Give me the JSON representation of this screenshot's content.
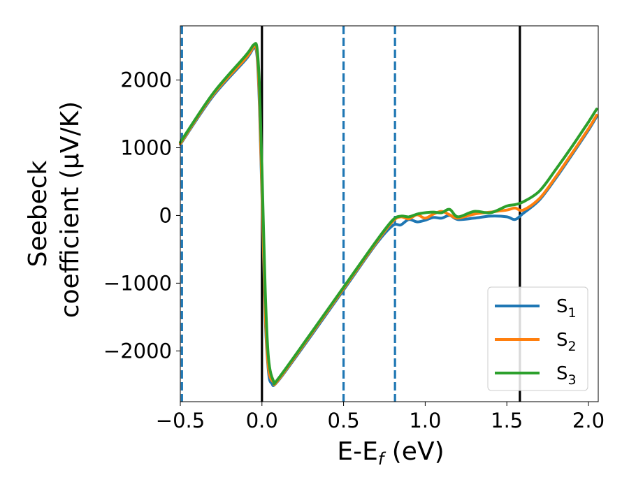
{
  "chart_data": {
    "type": "line",
    "title": "",
    "xlabel": {
      "main": "E-E",
      "sub": "f",
      "unit": " (eV)"
    },
    "ylabel": {
      "line1": "Seebeck",
      "line2": "coefficient  (μV/K)"
    },
    "xlim": [
      -0.5,
      2.06
    ],
    "ylim": [
      -2750,
      2800
    ],
    "xticks": [
      -0.5,
      0.0,
      0.5,
      1.0,
      1.5,
      2.0
    ],
    "xtick_labels": [
      "−0.5",
      "0.0",
      "0.5",
      "1.0",
      "1.5",
      "2.0"
    ],
    "yticks": [
      -2000,
      -1000,
      0,
      1000,
      2000
    ],
    "ytick_labels": [
      "−2000",
      "−1000",
      "0",
      "1000",
      "2000"
    ],
    "grid": false,
    "legend_position": "bottom-right",
    "vertical_lines": [
      {
        "x": -0.49,
        "style": "dashed",
        "color": "#1f77b4"
      },
      {
        "x": 0.0,
        "style": "solid",
        "color": "#000000"
      },
      {
        "x": 0.5,
        "style": "dashed",
        "color": "#1f77b4"
      },
      {
        "x": 0.815,
        "style": "dashed",
        "color": "#1f77b4"
      },
      {
        "x": 1.58,
        "style": "solid",
        "color": "#000000"
      }
    ],
    "series": [
      {
        "name": "S",
        "sub": "1",
        "color": "#1f77b4",
        "points": [
          [
            -0.5,
            1050
          ],
          [
            -0.3,
            1760
          ],
          [
            -0.1,
            2300
          ],
          [
            -0.05,
            2470
          ],
          [
            -0.03,
            2350
          ],
          [
            -0.015,
            1600
          ],
          [
            0.0,
            300
          ],
          [
            0.02,
            -1500
          ],
          [
            0.04,
            -2300
          ],
          [
            0.06,
            -2480
          ],
          [
            0.1,
            -2440
          ],
          [
            0.3,
            -1780
          ],
          [
            0.5,
            -1100
          ],
          [
            0.7,
            -420
          ],
          [
            0.8,
            -150
          ],
          [
            0.85,
            -140
          ],
          [
            0.9,
            -60
          ],
          [
            0.95,
            -95
          ],
          [
            1.0,
            -70
          ],
          [
            1.05,
            -30
          ],
          [
            1.1,
            -40
          ],
          [
            1.15,
            0
          ],
          [
            1.2,
            -60
          ],
          [
            1.3,
            -40
          ],
          [
            1.4,
            -10
          ],
          [
            1.5,
            -20
          ],
          [
            1.55,
            -60
          ],
          [
            1.6,
            30
          ],
          [
            1.7,
            230
          ],
          [
            1.8,
            550
          ],
          [
            1.9,
            900
          ],
          [
            2.0,
            1260
          ],
          [
            2.05,
            1460
          ]
        ]
      },
      {
        "name": "S",
        "sub": "2",
        "color": "#ff7f0e",
        "points": [
          [
            -0.5,
            1060
          ],
          [
            -0.3,
            1780
          ],
          [
            -0.1,
            2320
          ],
          [
            -0.05,
            2490
          ],
          [
            -0.03,
            2400
          ],
          [
            -0.015,
            1700
          ],
          [
            0.0,
            400
          ],
          [
            0.02,
            -1400
          ],
          [
            0.04,
            -2250
          ],
          [
            0.07,
            -2460
          ],
          [
            0.1,
            -2430
          ],
          [
            0.3,
            -1760
          ],
          [
            0.5,
            -1080
          ],
          [
            0.7,
            -400
          ],
          [
            0.8,
            -90
          ],
          [
            0.85,
            -20
          ],
          [
            0.9,
            -50
          ],
          [
            0.95,
            10
          ],
          [
            1.0,
            -40
          ],
          [
            1.05,
            20
          ],
          [
            1.1,
            60
          ],
          [
            1.15,
            10
          ],
          [
            1.2,
            -40
          ],
          [
            1.3,
            20
          ],
          [
            1.4,
            50
          ],
          [
            1.5,
            80
          ],
          [
            1.55,
            110
          ],
          [
            1.6,
            80
          ],
          [
            1.7,
            250
          ],
          [
            1.8,
            570
          ],
          [
            1.9,
            920
          ],
          [
            2.0,
            1280
          ],
          [
            2.05,
            1480
          ]
        ]
      },
      {
        "name": "S",
        "sub": "3",
        "color": "#2ca02c",
        "points": [
          [
            -0.5,
            1080
          ],
          [
            -0.3,
            1800
          ],
          [
            -0.1,
            2360
          ],
          [
            -0.05,
            2520
          ],
          [
            -0.03,
            2470
          ],
          [
            -0.015,
            1900
          ],
          [
            0.0,
            700
          ],
          [
            0.02,
            -1100
          ],
          [
            0.04,
            -2100
          ],
          [
            0.07,
            -2440
          ],
          [
            0.1,
            -2410
          ],
          [
            0.3,
            -1740
          ],
          [
            0.5,
            -1060
          ],
          [
            0.7,
            -380
          ],
          [
            0.8,
            -70
          ],
          [
            0.85,
            -10
          ],
          [
            0.9,
            -20
          ],
          [
            0.95,
            20
          ],
          [
            1.0,
            40
          ],
          [
            1.05,
            50
          ],
          [
            1.1,
            40
          ],
          [
            1.15,
            90
          ],
          [
            1.2,
            -20
          ],
          [
            1.3,
            60
          ],
          [
            1.4,
            40
          ],
          [
            1.5,
            140
          ],
          [
            1.55,
            160
          ],
          [
            1.6,
            200
          ],
          [
            1.7,
            360
          ],
          [
            1.8,
            680
          ],
          [
            1.9,
            1020
          ],
          [
            2.0,
            1380
          ],
          [
            2.05,
            1570
          ]
        ]
      }
    ]
  }
}
